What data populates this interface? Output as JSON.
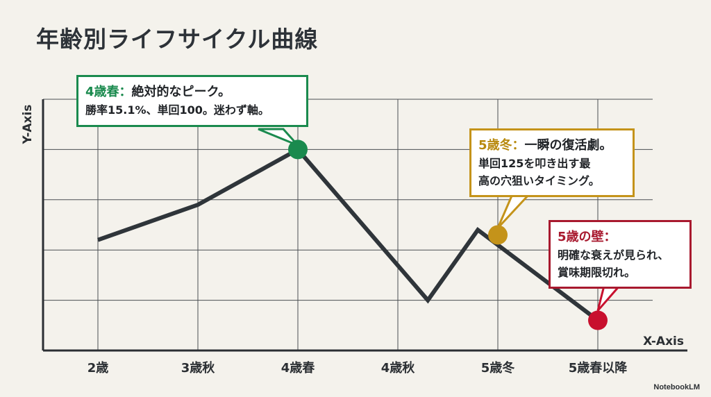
{
  "title": "年齢別ライフサイクル曲線",
  "chart_data": {
    "type": "line",
    "xlabel": "X-Axis",
    "ylabel": "Y-Axis",
    "categories": [
      "2歳",
      "3歳秋",
      "4歳春",
      "4歳秋",
      "5歳冬",
      "5歳春以降"
    ],
    "points": [
      {
        "x": 0,
        "y": 2.2
      },
      {
        "x": 1,
        "y": 2.9
      },
      {
        "x": 2,
        "y": 4.0
      },
      {
        "x": 3.3,
        "y": 1.0
      },
      {
        "x": 3.8,
        "y": 2.4
      },
      {
        "x": 5.0,
        "y": 0.6
      }
    ],
    "ylim": [
      0,
      5
    ],
    "grid": true,
    "highlights": [
      {
        "x": 2,
        "y": 4.0,
        "color": "#1a8a4e"
      },
      {
        "x": 4,
        "y": 2.3,
        "color": "#c4931a"
      },
      {
        "x": 5.0,
        "y": 0.6,
        "color": "#c8102e"
      }
    ]
  },
  "annotations": {
    "green": {
      "head_hl": "4歳春：",
      "head_rest": "絶対的なピーク。",
      "body": "勝率15.1%、単回100。迷わず軸。"
    },
    "gold": {
      "head_hl": "5歳冬：",
      "head_rest": "一瞬の復活劇。",
      "body1": "単回125を叩き出す最",
      "body2": "高の穴狙いタイミング。"
    },
    "red": {
      "head_hl": "5歳の壁：",
      "body1": "明確な衰えが見られ、",
      "body2": "賞味期限切れ。"
    }
  },
  "watermark": "NotebookLM",
  "colors": {
    "line": "#2f353a",
    "grid": "#4a4e52",
    "background": "#f4f2ec"
  }
}
